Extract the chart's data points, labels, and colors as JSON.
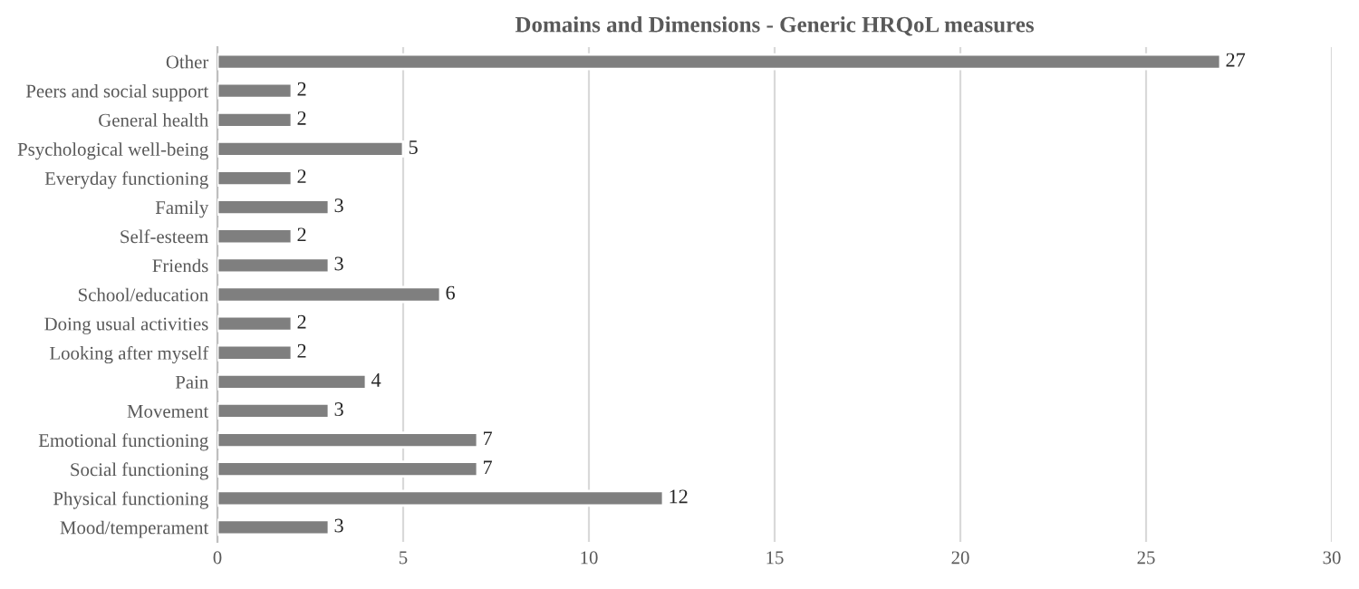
{
  "chart_data": {
    "type": "bar",
    "orientation": "horizontal",
    "title": "Domains and Dimensions - Generic HRQoL measures",
    "categories": [
      "Other",
      "Peers and social support",
      "General health",
      "Psychological well-being",
      "Everyday functioning",
      "Family",
      "Self-esteem",
      "Friends",
      "School/education",
      "Doing usual activities",
      "Looking after myself",
      "Pain",
      "Movement",
      "Emotional functioning",
      "Social functioning",
      "Physical functioning",
      "Mood/temperament"
    ],
    "values": [
      27,
      2,
      2,
      5,
      2,
      3,
      2,
      3,
      6,
      2,
      2,
      4,
      3,
      7,
      7,
      12,
      3
    ],
    "color": "#7f7f7f",
    "xlim": [
      0,
      30
    ],
    "xticks": [
      0,
      5,
      10,
      15,
      20,
      25,
      30
    ],
    "grid": "x",
    "data_labels": true
  }
}
